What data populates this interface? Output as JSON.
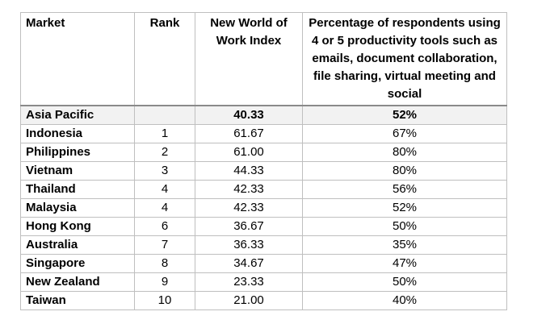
{
  "table": {
    "headers": [
      "Market",
      "Rank",
      "New World of Work Index",
      "Percentage of respondents using 4 or 5 productivity tools such as emails, document collaboration, file sharing, virtual meeting and social"
    ],
    "summary": {
      "market": "Asia Pacific",
      "rank": "",
      "index": "40.33",
      "pct": "52%"
    },
    "rows": [
      {
        "market": "Indonesia",
        "rank": "1",
        "index": "61.67",
        "pct": "67%"
      },
      {
        "market": "Philippines",
        "rank": "2",
        "index": "61.00",
        "pct": "80%"
      },
      {
        "market": "Vietnam",
        "rank": "3",
        "index": "44.33",
        "pct": "80%"
      },
      {
        "market": "Thailand",
        "rank": "4",
        "index": "42.33",
        "pct": "56%"
      },
      {
        "market": "Malaysia",
        "rank": "4",
        "index": "42.33",
        "pct": "52%"
      },
      {
        "market": "Hong Kong",
        "rank": "6",
        "index": "36.67",
        "pct": "50%"
      },
      {
        "market": "Australia",
        "rank": "7",
        "index": "36.33",
        "pct": "35%"
      },
      {
        "market": "Singapore",
        "rank": "8",
        "index": "34.67",
        "pct": "47%"
      },
      {
        "market": "New Zealand",
        "rank": "9",
        "index": "23.33",
        "pct": "50%"
      },
      {
        "market": "Taiwan",
        "rank": "10",
        "index": "21.00",
        "pct": "40%"
      }
    ]
  }
}
